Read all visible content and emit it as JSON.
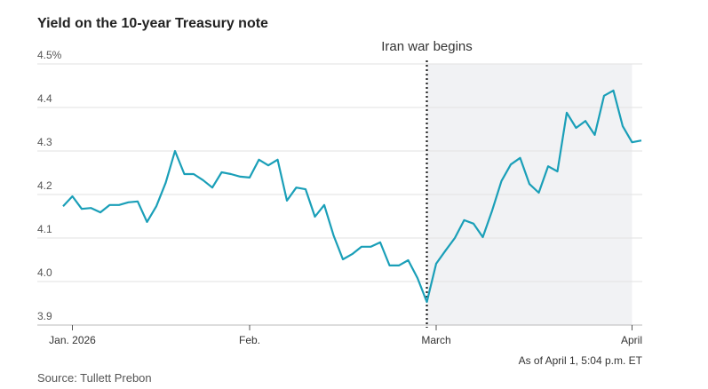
{
  "chart_data": {
    "type": "line",
    "title": "Yield on the 10-year Treasury note",
    "xlabel": "",
    "ylabel": "",
    "ylim": [
      3.9,
      4.5
    ],
    "y_ticks": [
      {
        "value": 4.5,
        "label": "4.5%"
      },
      {
        "value": 4.4,
        "label": "4.4"
      },
      {
        "value": 4.3,
        "label": "4.3"
      },
      {
        "value": 4.2,
        "label": "4.2"
      },
      {
        "value": 4.1,
        "label": "4.1"
      },
      {
        "value": 4.0,
        "label": "4.0"
      },
      {
        "value": 3.9,
        "label": "3.9"
      }
    ],
    "x_unit": "trading-day index",
    "xlim": [
      0,
      62
    ],
    "x_ticks": [
      {
        "value": 1,
        "label": "Jan. 2026"
      },
      {
        "value": 20,
        "label": "Feb."
      },
      {
        "value": 40,
        "label": "March"
      },
      {
        "value": 61,
        "label": "April"
      }
    ],
    "grid": true,
    "series": [
      {
        "name": "10-year Treasury yield",
        "color": "#1a9fb8",
        "values": [
          4.173,
          4.196,
          4.167,
          4.169,
          4.159,
          4.176,
          4.176,
          4.182,
          4.184,
          4.137,
          4.173,
          4.227,
          4.3,
          4.247,
          4.247,
          4.233,
          4.216,
          4.251,
          4.247,
          4.241,
          4.239,
          4.28,
          4.267,
          4.28,
          4.186,
          4.216,
          4.212,
          4.149,
          4.176,
          4.106,
          4.051,
          4.063,
          4.08,
          4.08,
          4.09,
          4.037,
          4.037,
          4.049,
          4.008,
          3.953,
          4.041,
          4.071,
          4.1,
          4.141,
          4.133,
          4.102,
          4.163,
          4.231,
          4.269,
          4.284,
          4.224,
          4.204,
          4.265,
          4.253,
          4.388,
          4.353,
          4.369,
          4.337,
          4.427,
          4.439,
          4.357,
          4.32,
          4.324
        ]
      }
    ],
    "event": {
      "x": 39,
      "label": "Iran war begins"
    },
    "shaded_range": [
      39,
      61
    ],
    "shade_color": "#f1f2f4",
    "note": "As of April 1, 5:04 p.m. ET",
    "source": "Source: Tullett Prebon"
  }
}
